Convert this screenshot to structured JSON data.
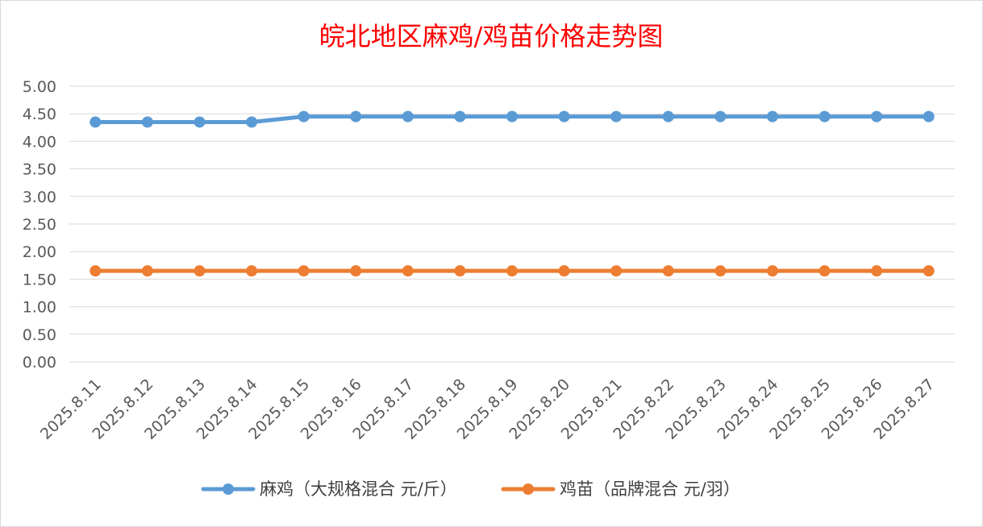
{
  "chart_data": {
    "type": "line",
    "title": "皖北地区麻鸡/鸡苗价格走势图",
    "title_color": "#ff0000",
    "categories": [
      "2025.8.11",
      "2025.8.12",
      "2025.8.13",
      "2025.8.14",
      "2025.8.15",
      "2025.8.16",
      "2025.8.17",
      "2025.8.18",
      "2025.8.19",
      "2025.8.20",
      "2025.8.21",
      "2025.8.22",
      "2025.8.23",
      "2025.8.24",
      "2025.8.25",
      "2025.8.26",
      "2025.8.27"
    ],
    "ylim": [
      0,
      5
    ],
    "yticks": [
      "0.00",
      "0.50",
      "1.00",
      "1.50",
      "2.00",
      "2.50",
      "3.00",
      "3.50",
      "4.00",
      "4.50",
      "5.00"
    ],
    "grid": true,
    "legend_position": "bottom",
    "series": [
      {
        "name": "麻鸡（大规格混合 元/斤）",
        "color": "#5b9bd5",
        "values": [
          4.35,
          4.35,
          4.35,
          4.35,
          4.45,
          4.45,
          4.45,
          4.45,
          4.45,
          4.45,
          4.45,
          4.45,
          4.45,
          4.45,
          4.45,
          4.45,
          4.45
        ]
      },
      {
        "name": "鸡苗（品牌混合 元/羽）",
        "color": "#ed7d31",
        "values": [
          1.65,
          1.65,
          1.65,
          1.65,
          1.65,
          1.65,
          1.65,
          1.65,
          1.65,
          1.65,
          1.65,
          1.65,
          1.65,
          1.65,
          1.65,
          1.65,
          1.65
        ]
      }
    ]
  }
}
